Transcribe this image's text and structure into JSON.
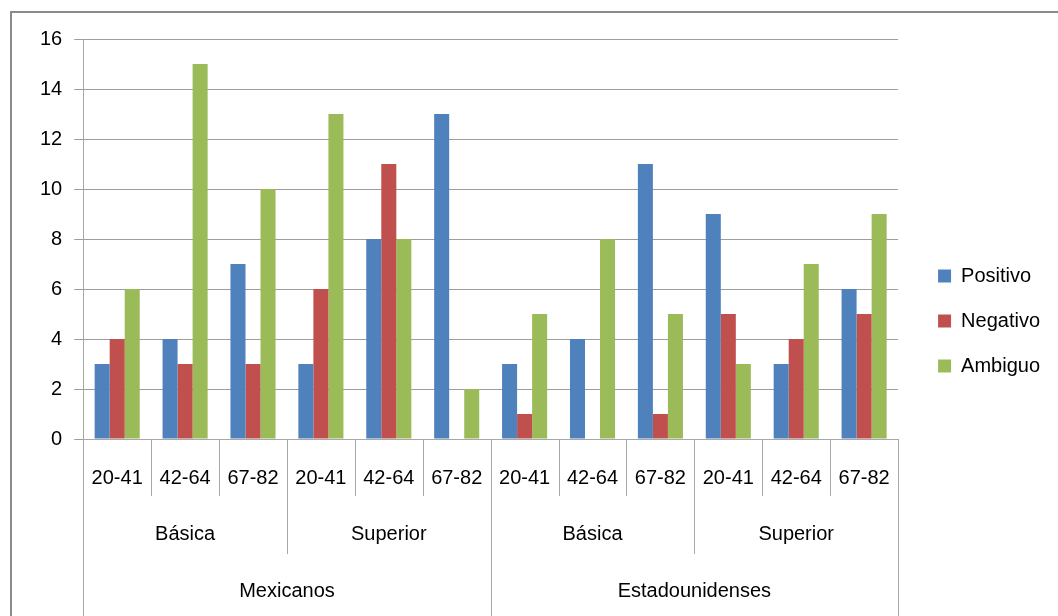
{
  "chart_data": {
    "type": "bar",
    "categories": [
      "20-41",
      "42-64",
      "67-82",
      "20-41",
      "42-64",
      "67-82",
      "20-41",
      "42-64",
      "67-82",
      "20-41",
      "42-64",
      "67-82"
    ],
    "series": [
      {
        "name": "Positivo",
        "color": "#4f81bd",
        "values": [
          3,
          4,
          7,
          3,
          8,
          13,
          3,
          4,
          11,
          9,
          3,
          6
        ]
      },
      {
        "name": "Negativo",
        "color": "#c0504d",
        "values": [
          4,
          3,
          3,
          6,
          11,
          0,
          1,
          0,
          1,
          5,
          4,
          5
        ]
      },
      {
        "name": "Ambiguo",
        "color": "#9bbb59",
        "values": [
          6,
          15,
          10,
          13,
          8,
          2,
          5,
          8,
          5,
          3,
          7,
          9
        ]
      }
    ],
    "ylim": [
      0,
      16
    ],
    "yticks": [
      0,
      2,
      4,
      6,
      8,
      10,
      12,
      14,
      16
    ],
    "grid": "y",
    "legend": "right",
    "annotations": [
      "Básica",
      "Superior",
      "Básica",
      "Superior",
      "Mexicanos",
      "Estadounidenses"
    ]
  }
}
